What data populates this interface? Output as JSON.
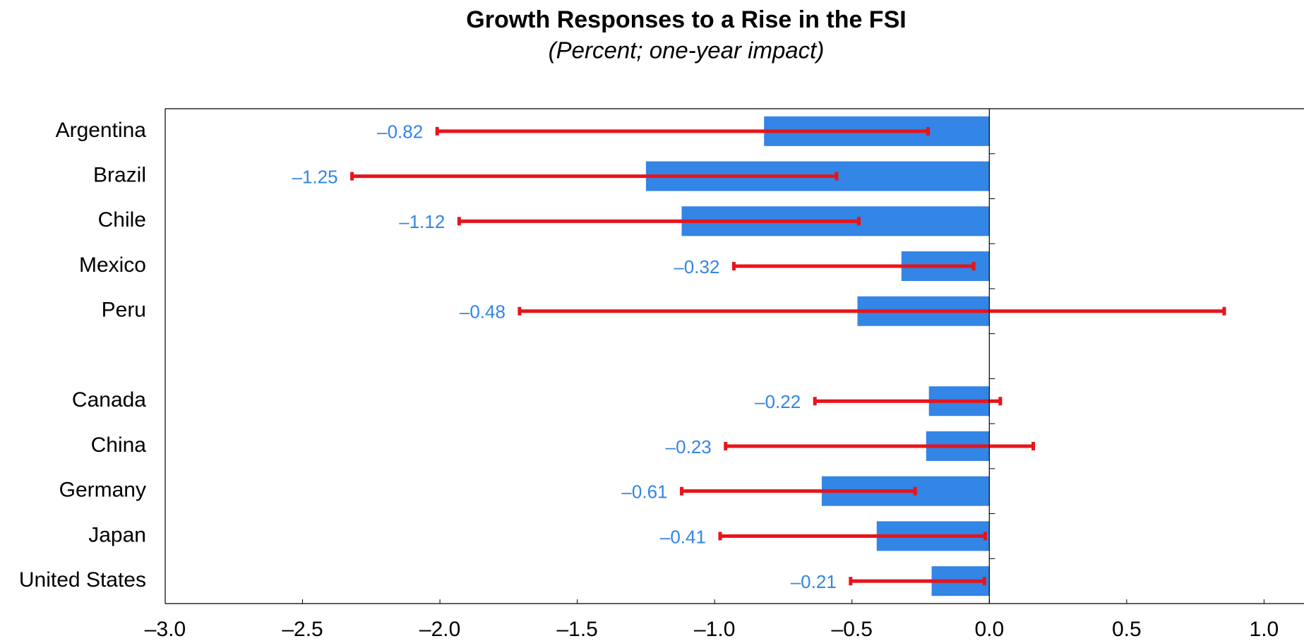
{
  "chart_data": {
    "type": "hbar-errorbar",
    "title": "Growth Responses to a Rise in the FSI",
    "subtitle": "(Percent; one-year impact)",
    "categories": [
      "Argentina",
      "Brazil",
      "Chile",
      "Mexico",
      "Peru",
      null,
      "Canada",
      "China",
      "Germany",
      "Japan",
      "United States"
    ],
    "series": [
      {
        "color": "#3385e6",
        "error_color": "#e8141a",
        "values": [
          -0.82,
          -1.25,
          -1.12,
          -0.32,
          -0.48,
          null,
          -0.22,
          -0.23,
          -0.61,
          -0.41,
          -0.21
        ],
        "value_labels": [
          "–0.82",
          "–1.25",
          "–1.12",
          "–0.32",
          "–0.48",
          null,
          "–0.22",
          "–0.23",
          "–0.61",
          "–0.41",
          "–0.21"
        ],
        "ci_low": [
          -2.01,
          -2.32,
          -1.93,
          -0.93,
          -1.71,
          null,
          -0.635,
          -0.96,
          -1.12,
          -0.98,
          -0.505
        ],
        "ci_high": [
          -0.223,
          -0.556,
          -0.475,
          -0.057,
          0.855,
          null,
          0.04,
          0.16,
          -0.27,
          -0.015,
          -0.018
        ]
      }
    ],
    "xlim": [
      -3.0,
      1.1
    ],
    "xticks": [
      {
        "value": -3.0,
        "label": "–3.0"
      },
      {
        "value": -2.5,
        "label": "–2.5"
      },
      {
        "value": -2.0,
        "label": "–2.0"
      },
      {
        "value": -1.5,
        "label": "–1.5"
      },
      {
        "value": -1.0,
        "label": "–1.0"
      },
      {
        "value": -0.5,
        "label": "–0.5"
      },
      {
        "value": 0,
        "label": "0.0"
      },
      {
        "value": 0.5,
        "label": "0.5"
      },
      {
        "value": 1.0,
        "label": "1.0"
      }
    ]
  }
}
